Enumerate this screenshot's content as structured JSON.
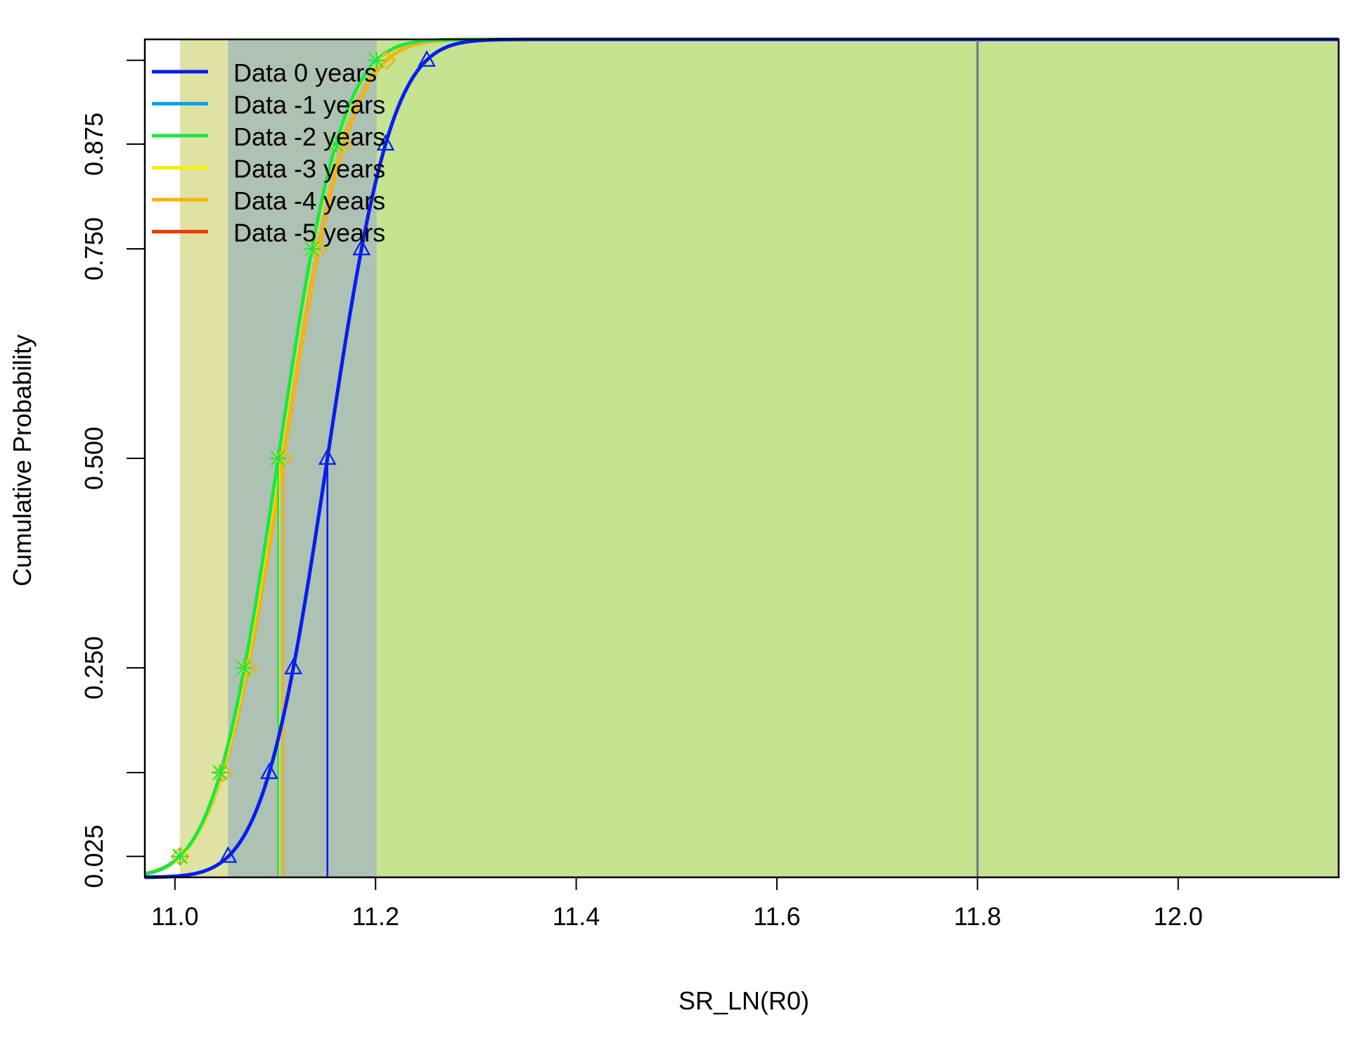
{
  "chart_data": {
    "type": "line",
    "title": "",
    "xlabel": "SR_LN(R0)",
    "ylabel": "Cumulative Probability",
    "xlim": [
      10.97,
      12.16
    ],
    "ylim": [
      0.0,
      1.0
    ],
    "x_ticks": [
      11.0,
      11.2,
      11.4,
      11.6,
      11.8,
      12.0
    ],
    "x_tick_labels": [
      "11.0",
      "11.2",
      "11.4",
      "11.6",
      "11.8",
      "12.0"
    ],
    "y_ticks": [
      0.025,
      0.125,
      0.25,
      0.5,
      0.75,
      0.875,
      0.975
    ],
    "y_tick_labels": [
      "0.025",
      "",
      "0.250",
      "0.500",
      "0.750",
      "0.875",
      ""
    ],
    "probability_levels": [
      0.025,
      0.125,
      0.25,
      0.5,
      0.75,
      0.875,
      0.975
    ],
    "grid": false,
    "legend_position": "top-left",
    "reference_line_x": 11.8,
    "reference_line_color": "#5f7f8a",
    "shading_color": "#c5e390",
    "series": [
      {
        "name": "Data 0 years",
        "color": "#0a1cf0",
        "mean": 11.152,
        "sd": 0.0504,
        "quantiles": [
          11.053,
          11.094,
          11.118,
          11.152,
          11.186,
          11.21,
          11.251
        ],
        "marker": "triangle"
      },
      {
        "name": "Data -1 years",
        "color": "#0aa5f2",
        "mean": 11.152,
        "sd": 0.0504,
        "quantiles": [
          11.053,
          11.094,
          11.118,
          11.152,
          11.186,
          11.21,
          11.251
        ],
        "marker": "triangle"
      },
      {
        "name": "Data -2 years",
        "color": "#1be64a",
        "mean": 11.103,
        "sd": 0.05,
        "quantiles": [
          11.005,
          11.045,
          11.069,
          11.103,
          11.137,
          11.161,
          11.201
        ],
        "marker": "asterisk"
      },
      {
        "name": "Data -3 years",
        "color": "#f5f00a",
        "mean": 11.104,
        "sd": 0.05,
        "quantiles": [
          11.006,
          11.046,
          11.07,
          11.104,
          11.138,
          11.162,
          11.202
        ],
        "marker": "cross"
      },
      {
        "name": "Data -4 years",
        "color": "#fab40a",
        "mean": 11.108,
        "sd": 0.0525,
        "quantiles": [
          11.005,
          11.048,
          11.073,
          11.108,
          11.143,
          11.168,
          11.211
        ],
        "marker": "diamond"
      },
      {
        "name": "Data -5 years",
        "color": "#f2380a",
        "mean": 11.108,
        "sd": 0.0525,
        "quantiles": [
          11.005,
          11.048,
          11.073,
          11.108,
          11.143,
          11.168,
          11.211
        ],
        "marker": "diamond"
      }
    ]
  }
}
